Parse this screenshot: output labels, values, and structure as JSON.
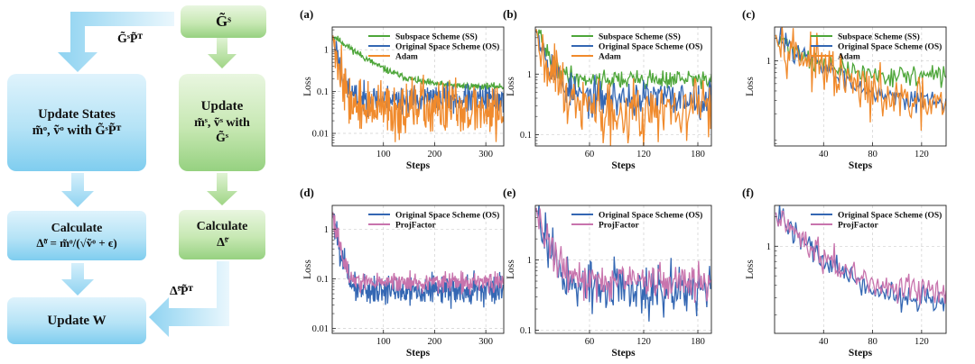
{
  "flowchart": {
    "g_tilde_s": "G̃ˢ",
    "edge_left": "G̃ˢP̃ᵀ",
    "edge_bottom": "Δ̃ˢP̃ᵀ",
    "update_states_title": "Update States",
    "update_states_body": "m̃ᵒ, ṽᵒ with G̃ˢP̃ᵀ",
    "update_s_title": "Update",
    "update_s_line2": "m̃ˢ, ṽˢ with",
    "update_s_line3": "G̃ˢ",
    "calc_o_title": "Calculate",
    "calc_o_body": "Δ̃ᵒ = m̃ᵒ/(√ṽᵒ + ϵ)",
    "calc_s_title": "Calculate",
    "calc_s_body": "Δ̃ˢ",
    "update_w": "Update W"
  },
  "colors": {
    "ss": "#4ea63a",
    "os": "#3467b3",
    "adam": "#f08a2c",
    "projfactor": "#c874ad"
  },
  "chart_data": [
    {
      "panel": "(a)",
      "type": "line",
      "yscale": "log",
      "ylabel": "Loss",
      "xlabel": "Steps",
      "xlim": [
        0,
        335
      ],
      "ylim": [
        0.005,
        3.5
      ],
      "xticks": [
        100,
        200,
        300
      ],
      "xtick_labels": [
        "100",
        "200",
        "300"
      ],
      "yticks": [
        1,
        0.1,
        0.01
      ],
      "ytick_labels": [
        "1",
        "0.1",
        "0.01"
      ],
      "series": [
        {
          "name": "Subspace Scheme (SS)",
          "key": "ss",
          "n": 335,
          "start": 2.2,
          "end": 0.13,
          "decay": 45,
          "noise": 0.08,
          "seed": 11
        },
        {
          "name": "Original Space Scheme (OS)",
          "key": "os",
          "n": 335,
          "start": 2.2,
          "end": 0.065,
          "decay": 8,
          "noise": 0.33,
          "seed": 23
        },
        {
          "name": "Adam",
          "key": "adam",
          "n": 335,
          "start": 2.2,
          "end": 0.04,
          "decay": 8,
          "noise": 0.62,
          "seed": 37
        }
      ]
    },
    {
      "panel": "(b)",
      "type": "line",
      "yscale": "log",
      "ylabel": "Loss",
      "xlabel": "Steps",
      "xlim": [
        0,
        195
      ],
      "ylim": [
        0.065,
        6
      ],
      "xticks": [
        60,
        120,
        180
      ],
      "xtick_labels": [
        "60",
        "120",
        "180"
      ],
      "yticks": [
        1,
        0.1
      ],
      "ytick_labels": [
        "1",
        "0.1"
      ],
      "series": [
        {
          "name": "Subspace Scheme (SS)",
          "key": "ss",
          "n": 192,
          "start": 5.5,
          "end": 0.82,
          "decay": 10,
          "noise": 0.16,
          "seed": 41
        },
        {
          "name": "Original Space Scheme (OS)",
          "key": "os",
          "n": 192,
          "start": 5.5,
          "end": 0.4,
          "decay": 10,
          "noise": 0.3,
          "seed": 53
        },
        {
          "name": "Adam",
          "key": "adam",
          "n": 192,
          "start": 5.5,
          "end": 0.28,
          "decay": 10,
          "noise": 0.48,
          "seed": 67
        }
      ]
    },
    {
      "panel": "(c)",
      "type": "line",
      "yscale": "log",
      "ylabel": "Loss",
      "xlabel": "Steps",
      "xlim": [
        0,
        140
      ],
      "ylim": [
        0.075,
        2.8
      ],
      "xticks": [
        40,
        80,
        120
      ],
      "xtick_labels": [
        "40",
        "80",
        "120"
      ],
      "yticks": [
        1
      ],
      "ytick_labels": [
        "1"
      ],
      "series": [
        {
          "name": "Subspace Scheme (SS)",
          "key": "ss",
          "n": 138,
          "start": 2.2,
          "end": 0.62,
          "decay": 22,
          "noise": 0.14,
          "seed": 71
        },
        {
          "name": "Original Space Scheme (OS)",
          "key": "os",
          "n": 138,
          "start": 2.2,
          "end": 0.27,
          "decay": 30,
          "noise": 0.14,
          "seed": 83
        },
        {
          "name": "Adam",
          "key": "adam",
          "n": 138,
          "start": 2.2,
          "end": 0.22,
          "decay": 30,
          "noise": 0.32,
          "seed": 97
        }
      ]
    },
    {
      "panel": "(d)",
      "type": "line",
      "yscale": "log",
      "ylabel": "Loss",
      "xlabel": "Steps",
      "xlim": [
        0,
        335
      ],
      "ylim": [
        0.008,
        3
      ],
      "xticks": [
        100,
        200,
        300
      ],
      "xtick_labels": [
        "100",
        "200",
        "300"
      ],
      "yticks": [
        1,
        0.1,
        0.01
      ],
      "ytick_labels": [
        "1",
        "0.1",
        "0.01"
      ],
      "series": [
        {
          "name": "Original Space Scheme (OS)",
          "key": "os",
          "n": 335,
          "start": 2.2,
          "end": 0.06,
          "decay": 8,
          "noise": 0.3,
          "seed": 101
        },
        {
          "name": "ProjFactor",
          "key": "projfactor",
          "n": 335,
          "start": 2.2,
          "end": 0.085,
          "decay": 8,
          "noise": 0.2,
          "seed": 113
        }
      ]
    },
    {
      "panel": "(e)",
      "type": "line",
      "yscale": "log",
      "ylabel": "Loss",
      "xlabel": "Steps",
      "xlim": [
        0,
        195
      ],
      "ylim": [
        0.09,
        6
      ],
      "xticks": [
        60,
        120,
        180
      ],
      "xtick_labels": [
        "60",
        "120",
        "180"
      ],
      "yticks": [
        1,
        0.1
      ],
      "ytick_labels": [
        "1",
        "0.1"
      ],
      "series": [
        {
          "name": "Original Space Scheme (OS)",
          "key": "os",
          "n": 192,
          "start": 5.5,
          "end": 0.38,
          "decay": 10,
          "noise": 0.36,
          "seed": 127
        },
        {
          "name": "ProjFactor",
          "key": "projfactor",
          "n": 192,
          "start": 5.5,
          "end": 0.5,
          "decay": 10,
          "noise": 0.26,
          "seed": 131
        }
      ]
    },
    {
      "panel": "(f)",
      "type": "line",
      "yscale": "log",
      "ylabel": "Loss",
      "xlabel": "Steps",
      "xlim": [
        0,
        140
      ],
      "ylim": [
        0.13,
        2.6
      ],
      "xticks": [
        40,
        80,
        120
      ],
      "xtick_labels": [
        "40",
        "80",
        "120"
      ],
      "yticks": [
        1
      ],
      "ytick_labels": [
        "1"
      ],
      "series": [
        {
          "name": "Original Space Scheme (OS)",
          "key": "os",
          "n": 138,
          "start": 2.2,
          "end": 0.25,
          "decay": 28,
          "noise": 0.14,
          "seed": 139
        },
        {
          "name": "ProjFactor",
          "key": "projfactor",
          "n": 138,
          "start": 2.2,
          "end": 0.32,
          "decay": 28,
          "noise": 0.14,
          "seed": 149
        }
      ]
    }
  ]
}
